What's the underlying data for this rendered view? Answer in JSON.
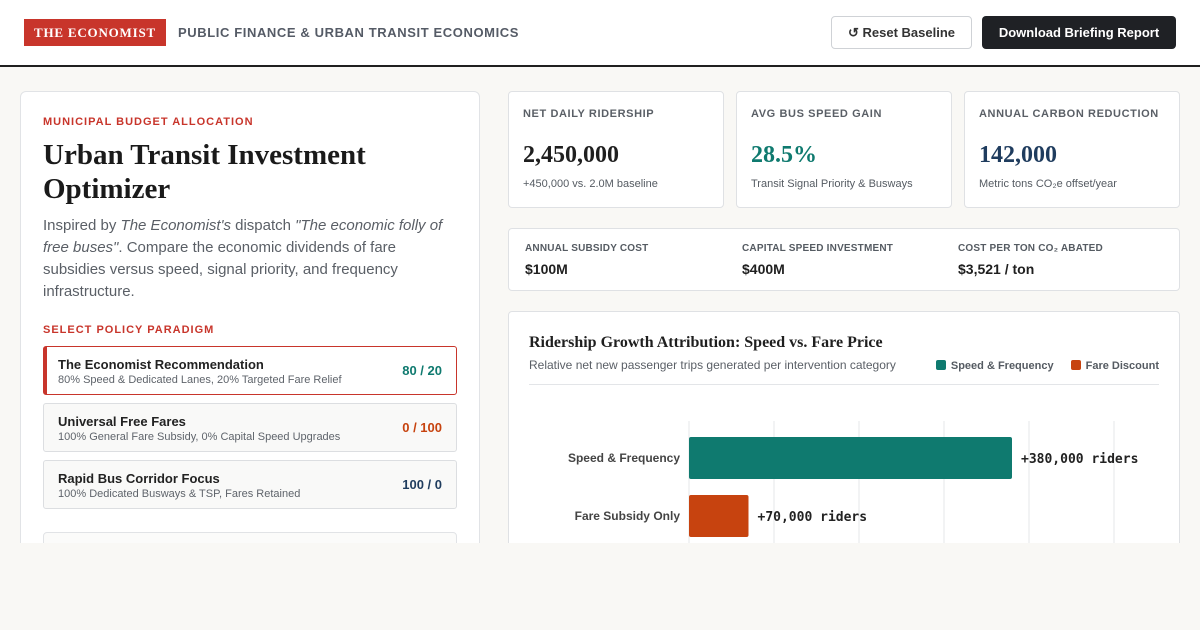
{
  "header": {
    "logo": "THE ECONOMIST",
    "section": "PUBLIC FINANCE & URBAN TRANSIT ECONOMICS",
    "reset_label": "↺ Reset Baseline",
    "download_label": "Download Briefing Report"
  },
  "left": {
    "kicker": "MUNICIPAL BUDGET ALLOCATION",
    "title": "Urban Transit Investment Optimizer",
    "intro_1": "Inspired by ",
    "intro_2": "The Economist's",
    "intro_3": " dispatch ",
    "intro_4": "\"The economic folly of free buses\"",
    "intro_5": ". Compare the economic dividends of fare subsidies versus speed, signal priority, and frequency infrastructure.",
    "paradigm_label": "SELECT POLICY PARADIGM",
    "options": [
      {
        "name": "The Economist Recommendation",
        "desc": "80% Speed & Dedicated Lanes, 20% Targeted Fare Relief",
        "score": "80 / 20",
        "color": "#0f7a6f"
      },
      {
        "name": "Universal Free Fares",
        "desc": "100% General Fare Subsidy, 0% Capital Speed Upgrades",
        "score": "0 / 100",
        "color": "#c7430f"
      },
      {
        "name": "Rapid Bus Corridor Focus",
        "desc": "100% Dedicated Busways & TSP, Fares Retained",
        "score": "100 / 0",
        "color": "#1f3c5e"
      }
    ]
  },
  "stats": [
    {
      "label": "NET DAILY RIDERSHIP",
      "value": "2,450,000",
      "sub": "+450,000 vs. 2.0M baseline",
      "color": "#1f1f1f"
    },
    {
      "label": "AVG BUS SPEED GAIN",
      "value": "28.5%",
      "sub": "Transit Signal Priority & Busways",
      "color": "#0f7a6f"
    },
    {
      "label": "ANNUAL CARBON REDUCTION",
      "value": "142,000",
      "sub": "Metric tons CO₂e offset/year",
      "color": "#1f3c5e"
    }
  ],
  "costs": [
    {
      "label": "ANNUAL SUBSIDY COST",
      "value": "$100M"
    },
    {
      "label": "CAPITAL SPEED INVESTMENT",
      "value": "$400M"
    },
    {
      "label": "COST PER TON CO₂ ABATED",
      "value": "$3,521 / ton"
    }
  ],
  "chart": {
    "title": "Ridership Growth Attribution: Speed vs. Fare Price",
    "subtitle": "Relative net new passenger trips generated per intervention category",
    "legend": [
      {
        "label": "Speed & Frequency",
        "color": "#0f7a6f"
      },
      {
        "label": "Fare Discount",
        "color": "#c7430f"
      }
    ]
  },
  "chart_data": {
    "type": "bar",
    "orientation": "horizontal",
    "categories": [
      "Speed & Frequency",
      "Fare Subsidy Only"
    ],
    "values": [
      380000,
      70000
    ],
    "data_labels": [
      "+380,000 riders",
      "+70,000 riders"
    ],
    "colors": [
      "#0f7a6f",
      "#c7430f"
    ],
    "xlim": [
      0,
      500000
    ],
    "grid": true
  }
}
